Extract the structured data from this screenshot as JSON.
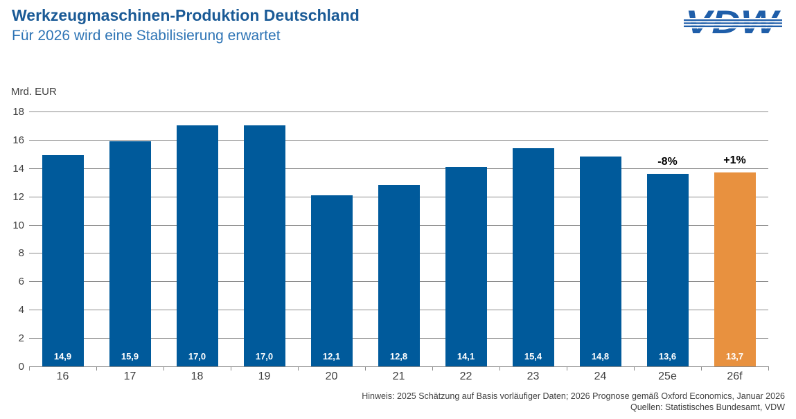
{
  "header": {
    "title": "Werkzeugmaschinen-Produktion Deutschland",
    "subtitle": "Für 2026 wird eine Stabilisierung erwartet",
    "logo_text": "VDW"
  },
  "chart_data": {
    "type": "bar",
    "title": "Werkzeugmaschinen-Produktion Deutschland",
    "subtitle": "Für 2026 wird eine Stabilisierung erwartet",
    "unit_label": "Mrd. EUR",
    "xlabel": "",
    "ylabel": "Mrd. EUR",
    "categories": [
      "16",
      "17",
      "18",
      "19",
      "20",
      "21",
      "22",
      "23",
      "24",
      "25e",
      "26f"
    ],
    "values": [
      14.9,
      15.9,
      17.0,
      17.0,
      12.1,
      12.8,
      14.1,
      15.4,
      14.8,
      13.6,
      13.7
    ],
    "value_labels": [
      "14,9",
      "15,9",
      "17,0",
      "17,0",
      "12,1",
      "12,8",
      "14,1",
      "15,4",
      "14,8",
      "13,6",
      "13,7"
    ],
    "annotations": [
      {
        "index": 9,
        "label": "-8%"
      },
      {
        "index": 10,
        "label": "+1%"
      }
    ],
    "bar_default_color": "#005a9b",
    "bar_highlight_color": "#e8913f",
    "highlight_index": 10,
    "ylim": [
      0,
      18
    ],
    "ytick_step": 2,
    "grid": true,
    "legend": null
  },
  "footer": {
    "note": "Hinweis: 2025 Schätzung auf Basis vorläufiger Daten; 2026 Prognose gemäß Oxford Economics, Januar 2026",
    "sources": "Quellen: Statistisches Bundesamt, VDW"
  },
  "colors": {
    "title_blue": "#1a5a96",
    "subtitle_blue": "#2e74b5",
    "bar_blue": "#005a9b",
    "bar_orange": "#e8913f",
    "logo_blue": "#1f5ea9",
    "gridline_gray": "#8a8a8a",
    "axis_text_gray": "#404040"
  }
}
